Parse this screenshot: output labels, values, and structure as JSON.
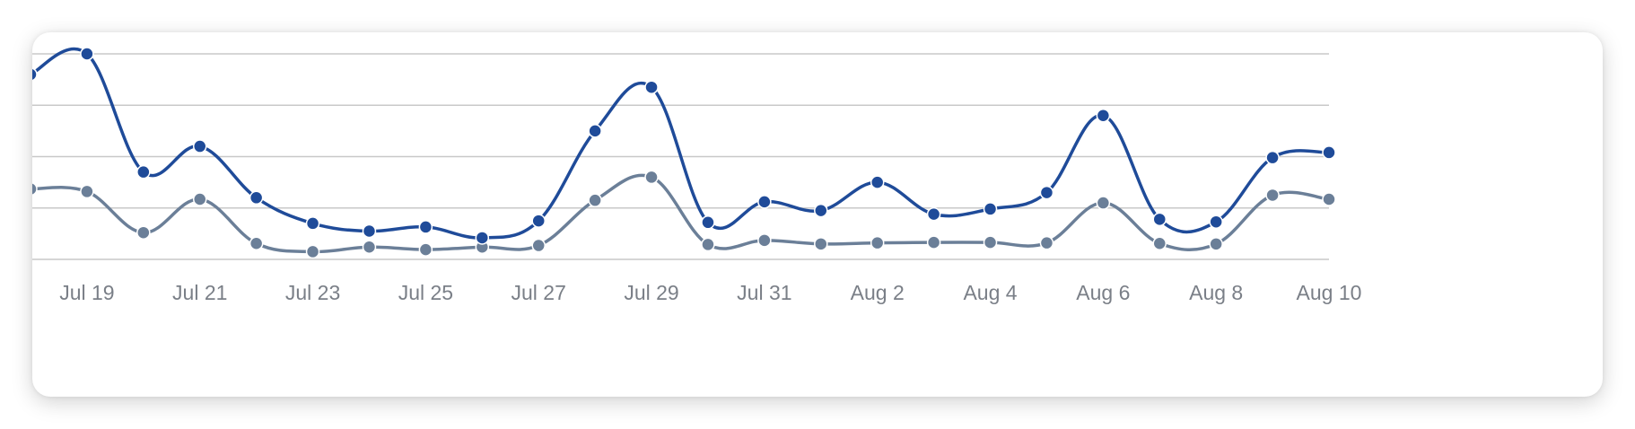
{
  "chart_data": {
    "type": "line",
    "x": [
      "Jul 18",
      "Jul 19",
      "Jul 20",
      "Jul 21",
      "Jul 22",
      "Jul 23",
      "Jul 24",
      "Jul 25",
      "Jul 26",
      "Jul 27",
      "Jul 28",
      "Jul 29",
      "Jul 30",
      "Jul 31",
      "Aug 1",
      "Aug 2",
      "Aug 3",
      "Aug 4",
      "Aug 5",
      "Aug 6",
      "Aug 7",
      "Aug 8",
      "Aug 9",
      "Aug 10"
    ],
    "x_tick_labels": [
      "Jul 19",
      "Jul 21",
      "Jul 23",
      "Jul 25",
      "Jul 27",
      "Jul 29",
      "Jul 31",
      "Aug 2",
      "Aug 4",
      "Aug 6",
      "Aug 8",
      "Aug 10"
    ],
    "ylim": [
      0,
      4
    ],
    "y_gridlines": [
      0,
      1,
      2,
      3,
      4
    ],
    "grid": "horizontal",
    "series": [
      {
        "color": "#1f4b99",
        "values": [
          3.6,
          4.0,
          1.7,
          2.2,
          1.2,
          0.7,
          0.55,
          0.63,
          0.42,
          0.75,
          2.5,
          3.35,
          0.72,
          1.12,
          0.95,
          1.5,
          0.88,
          0.98,
          1.3,
          2.8,
          0.78,
          0.73,
          1.98,
          2.08
        ]
      },
      {
        "color": "#6b7f98",
        "values": [
          1.37,
          1.32,
          0.52,
          1.17,
          0.31,
          0.15,
          0.24,
          0.19,
          0.24,
          0.27,
          1.15,
          1.6,
          0.29,
          0.37,
          0.3,
          0.32,
          0.33,
          0.33,
          0.32,
          1.1,
          0.31,
          0.3,
          1.25,
          1.17
        ]
      }
    ]
  }
}
